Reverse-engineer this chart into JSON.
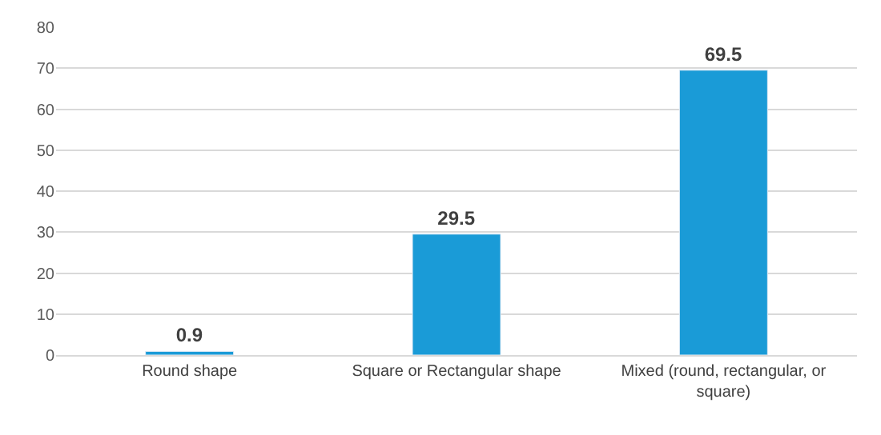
{
  "chart_data": {
    "type": "bar",
    "categories": [
      "Round shape",
      "Square or Rectangular shape",
      "Mixed (round, rectangular, or square)"
    ],
    "values": [
      0.9,
      29.5,
      69.5
    ],
    "color": "#1a9bd7",
    "ylim": [
      0,
      80
    ],
    "yticks": [
      0,
      10,
      20,
      30,
      40,
      50,
      60,
      70,
      80
    ],
    "grid": "y",
    "data_labels": true
  }
}
